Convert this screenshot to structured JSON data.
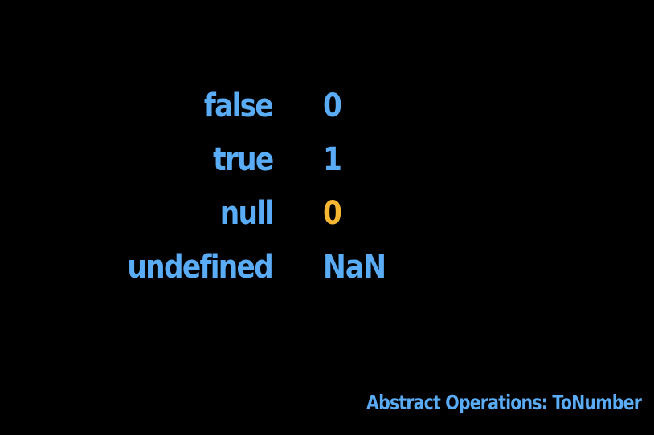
{
  "colors": {
    "background": "#000000",
    "text": "#59ACF5",
    "highlight": "#F7B733"
  },
  "rows": [
    {
      "key": "false",
      "value": "0",
      "highlight": false
    },
    {
      "key": "true",
      "value": "1",
      "highlight": false
    },
    {
      "key": "null",
      "value": "0",
      "highlight": true
    },
    {
      "key": "undefined",
      "value": "NaN",
      "highlight": false
    }
  ],
  "caption": "Abstract Operations: ToNumber"
}
